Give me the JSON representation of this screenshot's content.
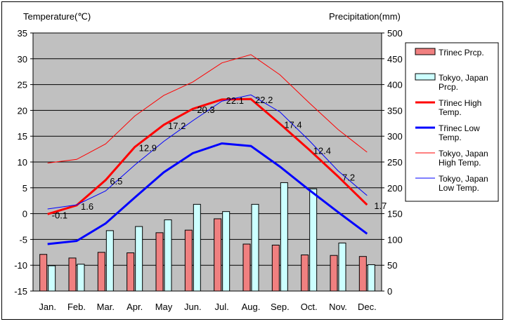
{
  "chart_data": {
    "type": "bar+line",
    "categories": [
      "Jan.",
      "Feb.",
      "Mar.",
      "Apr.",
      "May",
      "Jun.",
      "Jul.",
      "Aug.",
      "Sep.",
      "Oct.",
      "Nov.",
      "Dec."
    ],
    "y_left": {
      "label": "Temperature(℃)",
      "range": [
        -15,
        35
      ],
      "ticks": [
        35,
        30,
        25,
        20,
        15,
        10,
        5,
        0,
        -5,
        -10,
        -15
      ]
    },
    "y_right": {
      "label": "Precipitation(mm)",
      "range": [
        0,
        500
      ],
      "ticks": [
        500,
        450,
        400,
        350,
        300,
        250,
        200,
        150,
        100,
        50,
        0
      ]
    },
    "grid": true,
    "legend_position": "right",
    "precipitation_series": [
      {
        "name": "Třinec Prcp.",
        "color": "#f08080",
        "values": [
          71,
          64,
          75,
          74,
          113,
          118,
          140,
          91,
          89,
          70,
          69,
          67
        ]
      },
      {
        "name": "Tokyo, Japan Prcp.",
        "color": "#ccffff",
        "values": [
          49,
          52,
          117,
          125,
          138,
          168,
          154,
          168,
          210,
          198,
          93,
          51
        ]
      }
    ],
    "temperature_series": [
      {
        "name": "Třinec High Temp.",
        "color": "#ff0000",
        "width": "bold",
        "values": [
          -0.1,
          1.6,
          6.5,
          12.9,
          17.2,
          20.3,
          22.1,
          22.2,
          17.4,
          12.4,
          7.2,
          1.7
        ]
      },
      {
        "name": "Třinec Low Temp.",
        "color": "#0000ff",
        "width": "bold",
        "values": [
          -5.9,
          -5.3,
          -1.9,
          3.1,
          8.0,
          11.7,
          13.6,
          13.1,
          9.1,
          4.6,
          0.3,
          -3.9
        ]
      },
      {
        "name": "Tokyo, Japan High Temp.",
        "color": "#ff0000",
        "width": "thin",
        "values": [
          9.8,
          10.5,
          13.5,
          18.9,
          22.9,
          25.5,
          29.2,
          30.8,
          26.9,
          21.5,
          16.3,
          11.9
        ]
      },
      {
        "name": "Tokyo, Japan Low Temp.",
        "color": "#0000ff",
        "width": "thin",
        "values": [
          0.9,
          1.7,
          4.4,
          9.4,
          14.0,
          18.0,
          21.8,
          23.0,
          19.7,
          14.2,
          8.3,
          3.5
        ]
      }
    ],
    "data_labels": [
      "-0.1",
      "1.6",
      "6.5",
      "12.9",
      "17.2",
      "20.3",
      "22.1",
      "22.2",
      "17.4",
      "12.4",
      "7.2",
      "1.7"
    ]
  },
  "legend": [
    {
      "kind": "bar",
      "color": "#f08080",
      "lines": [
        "Třinec Prcp."
      ]
    },
    {
      "kind": "bar",
      "color": "#ccffff",
      "lines": [
        "Tokyo, Japan",
        "Prcp."
      ]
    },
    {
      "kind": "line",
      "color": "#ff0000",
      "width": "bold",
      "lines": [
        "Třinec High",
        "Temp."
      ]
    },
    {
      "kind": "line",
      "color": "#0000ff",
      "width": "bold",
      "lines": [
        "Třinec Low",
        "Temp."
      ]
    },
    {
      "kind": "line",
      "color": "#ff0000",
      "width": "thin",
      "lines": [
        "Tokyo, Japan",
        "High Temp."
      ]
    },
    {
      "kind": "line",
      "color": "#0000ff",
      "width": "thin",
      "lines": [
        "Tokyo, Japan",
        "Low Temp."
      ]
    }
  ]
}
